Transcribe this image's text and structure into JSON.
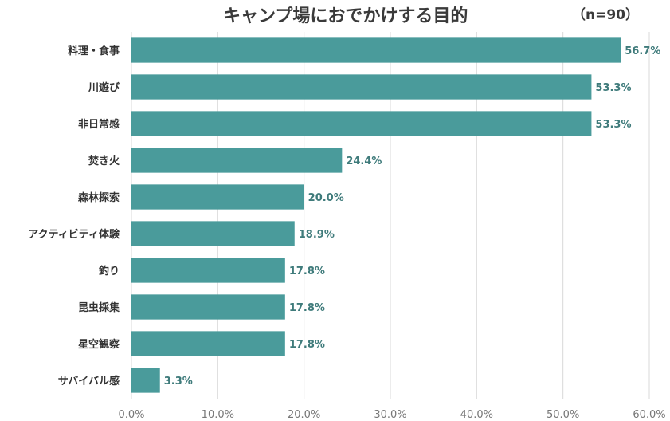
{
  "chart_data": {
    "type": "bar",
    "orientation": "horizontal",
    "title": "キャンプ場におでかけする目的",
    "subtitle": "（n=90）",
    "categories": [
      "料理・食事",
      "川遊び",
      "非日常感",
      "焚き火",
      "森林探索",
      "アクティビティ体験",
      "釣り",
      "昆虫採集",
      "星空観察",
      "サバイバル感"
    ],
    "values": [
      56.7,
      53.3,
      53.3,
      24.4,
      20.0,
      18.9,
      17.8,
      17.8,
      17.8,
      3.3
    ],
    "value_labels": [
      "56.7%",
      "53.3%",
      "53.3%",
      "24.4%",
      "20.0%",
      "18.9%",
      "17.8%",
      "17.8%",
      "17.8%",
      "3.3%"
    ],
    "xlim": [
      0,
      60
    ],
    "x_ticks": [
      "0.0%",
      "10.0%",
      "20.0%",
      "30.0%",
      "40.0%",
      "50.0%",
      "60.0%"
    ],
    "grid": true,
    "bar_color": "#4a9b9b",
    "value_label_color": "#3f7b7b"
  }
}
